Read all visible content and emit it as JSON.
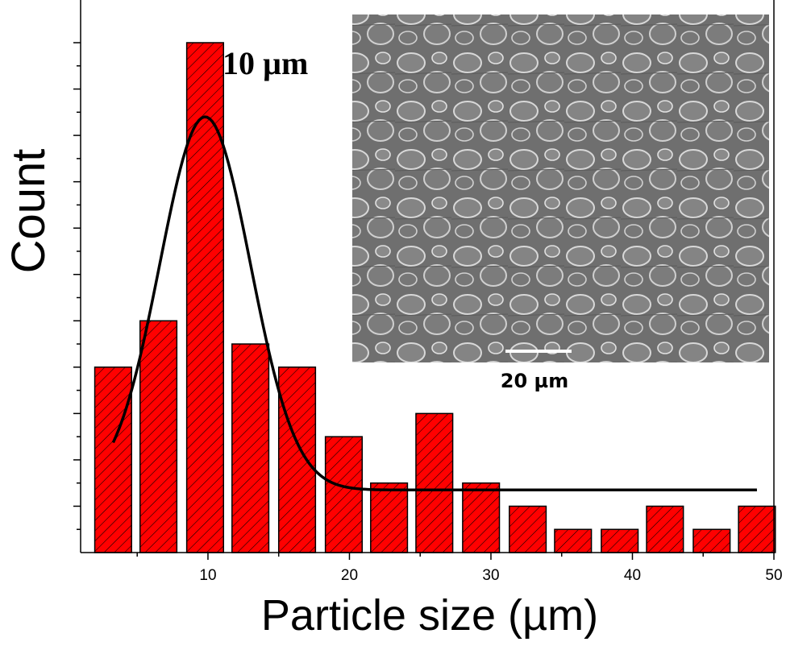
{
  "chart_data": {
    "type": "bar",
    "xlabel": "Particle size (µm)",
    "ylabel": "Count",
    "xlim": [
      1,
      50
    ],
    "xticks": [
      10,
      20,
      30,
      40,
      50
    ],
    "ylim": [
      0,
      22
    ],
    "bar_width": 2.6,
    "bar_color": "#ff0000",
    "bars": [
      {
        "x": 3.3,
        "value": 8
      },
      {
        "x": 6.5,
        "value": 10
      },
      {
        "x": 9.8,
        "value": 22
      },
      {
        "x": 13.0,
        "value": 9
      },
      {
        "x": 16.3,
        "value": 8
      },
      {
        "x": 19.6,
        "value": 5
      },
      {
        "x": 22.8,
        "value": 3
      },
      {
        "x": 26.0,
        "value": 6
      },
      {
        "x": 29.3,
        "value": 3
      },
      {
        "x": 32.6,
        "value": 2
      },
      {
        "x": 35.8,
        "value": 1
      },
      {
        "x": 39.1,
        "value": 1
      },
      {
        "x": 42.3,
        "value": 2
      },
      {
        "x": 45.6,
        "value": 1
      },
      {
        "x": 48.8,
        "value": 2
      }
    ],
    "fit": {
      "type": "gaussian",
      "baseline": 2.7,
      "amplitude": 16.1,
      "center": 9.8,
      "sigma": 3.2,
      "x_range": [
        3.3,
        48.8
      ]
    },
    "annotations": [
      "10 µm"
    ],
    "inset": {
      "type": "sem-micrograph",
      "scale_bar_label": "20 µm"
    }
  }
}
